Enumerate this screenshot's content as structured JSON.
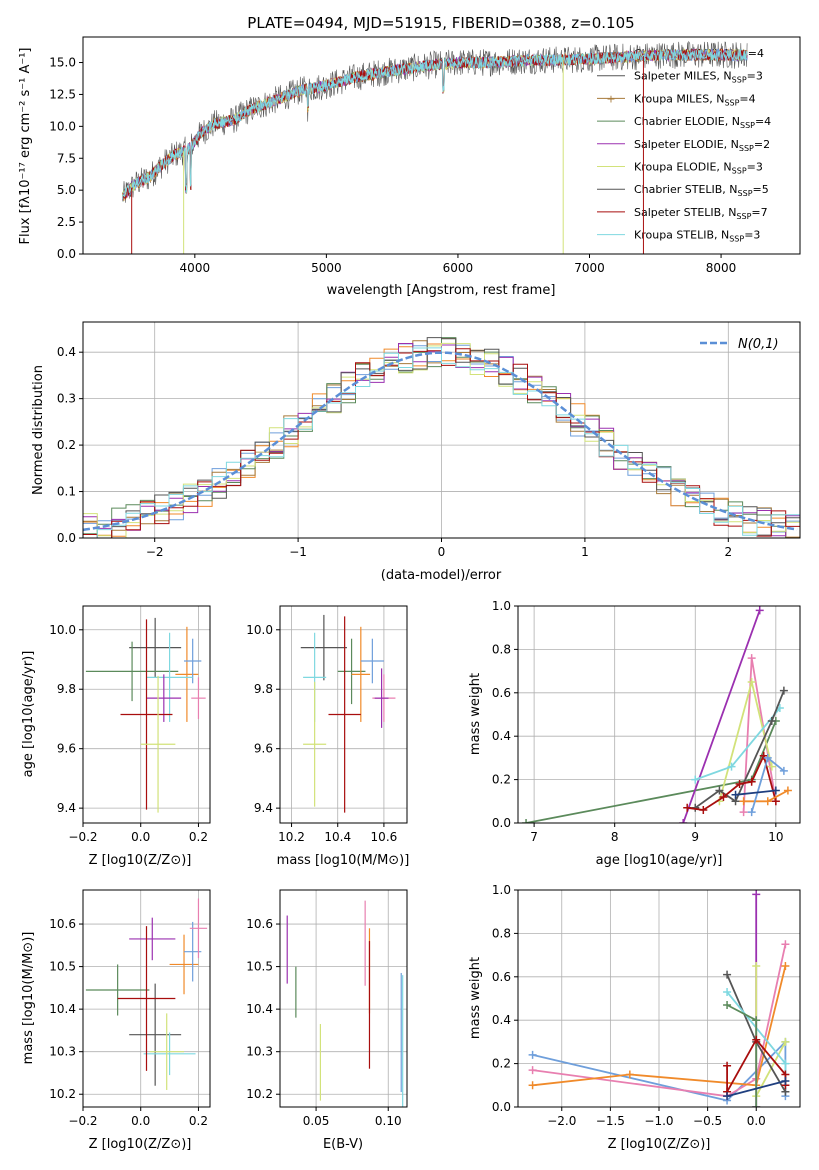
{
  "colors": [
    "#6f9fdb",
    "#f08a2a",
    "#a77a3a",
    "#5b8a5b",
    "#9b30b0",
    "#d2e27a",
    "#555555",
    "#a80e0e",
    "#7fd8e0",
    "#e87fb0",
    "#1f3f7f"
  ],
  "chart_data": [
    {
      "id": "spectrum",
      "type": "line",
      "title": "PLATE=0494, MJD=51915, FIBERID=0388, z=0.105",
      "xlabel": "wavelength [Angstrom, rest frame]",
      "ylabel": "Flux [fλ10⁻¹⁷ erg cm⁻² s⁻¹ A⁻¹]",
      "xlim": [
        3150,
        8600
      ],
      "ylim": [
        0,
        17
      ],
      "xticks": [
        4000,
        5000,
        6000,
        7000,
        8000
      ],
      "yticks": [
        0.0,
        2.5,
        5.0,
        7.5,
        10.0,
        12.5,
        15.0
      ],
      "ytick_labels": [
        "0.0",
        "2.5",
        "5.0",
        "7.5",
        "10.0",
        "12.5",
        "15.0"
      ],
      "legend": [
        "Chabrier MILES, N_SSP=4",
        "Salpeter MILES, N_SSP=3",
        "Kroupa MILES, N_SSP=4",
        "Chabrier ELODIE, N_SSP=4",
        "Salpeter ELODIE, N_SSP=2",
        "Kroupa ELODIE, N_SSP=3",
        "Chabrier STELIB, N_SSP=5",
        "Salpeter STELIB, N_SSP=7",
        "Kroupa STELIB, N_SSP=3"
      ],
      "legend_position": "top-right",
      "continuum": [
        [
          3450,
          4.5
        ],
        [
          3550,
          5.5
        ],
        [
          3650,
          6.0
        ],
        [
          3750,
          7.0
        ],
        [
          3850,
          7.8
        ],
        [
          3950,
          8.2
        ],
        [
          4050,
          9.5
        ],
        [
          4150,
          10.2
        ],
        [
          4300,
          10.5
        ],
        [
          4400,
          11.2
        ],
        [
          4600,
          12.0
        ],
        [
          4800,
          12.8
        ],
        [
          5000,
          13.2
        ],
        [
          5200,
          13.8
        ],
        [
          5400,
          14.2
        ],
        [
          5600,
          14.5
        ],
        [
          5800,
          14.8
        ],
        [
          6000,
          15.0
        ],
        [
          6200,
          15.0
        ],
        [
          6400,
          15.1
        ],
        [
          6600,
          15.2
        ],
        [
          6800,
          15.2
        ],
        [
          7000,
          15.3
        ],
        [
          7200,
          15.4
        ],
        [
          7400,
          15.5
        ],
        [
          7600,
          15.6
        ],
        [
          7800,
          15.6
        ],
        [
          8000,
          15.6
        ],
        [
          8200,
          15.6
        ]
      ]
    },
    {
      "id": "residuals",
      "type": "histogram",
      "xlabel": "(data-model)/error",
      "ylabel": "Normed distribution",
      "xlim": [
        -2.5,
        2.5
      ],
      "ylim": [
        0,
        0.465
      ],
      "xticks": [
        -2,
        -1,
        0,
        1,
        2
      ],
      "yticks": [
        0.0,
        0.1,
        0.2,
        0.3,
        0.4
      ],
      "ytick_labels": [
        "0.0",
        "0.1",
        "0.2",
        "0.3",
        "0.4"
      ],
      "legend": [
        "N(0,1)"
      ],
      "legend_position": "top-right",
      "gaussian": {
        "mean": 0,
        "sigma": 1
      }
    },
    {
      "id": "age-vs-Z",
      "type": "errorbar",
      "xlabel": "Z [log10(Z/Z⊙)]",
      "ylabel": "age [log10(age/yr)]",
      "xlim": [
        -0.2,
        0.24
      ],
      "ylim": [
        9.35,
        10.08
      ],
      "xticks": [
        -0.2,
        0.0,
        0.2
      ],
      "xtick_labels": [
        "−0.2",
        "0.0",
        "0.2"
      ],
      "yticks": [
        9.4,
        9.6,
        9.8,
        10.0
      ],
      "ytick_labels": [
        "9.4",
        "9.6",
        "9.8",
        "10.0"
      ],
      "points": [
        {
          "x": 0.05,
          "y": 9.94,
          "xerr": 0.09,
          "yerr": 0.1,
          "c": 6
        },
        {
          "x": -0.03,
          "y": 9.86,
          "xerr": 0.16,
          "yerr": 0.1,
          "c": 3
        },
        {
          "x": 0.16,
          "y": 9.85,
          "xerr": 0.04,
          "yerr": 0.16,
          "c": 1
        },
        {
          "x": 0.18,
          "y": 9.895,
          "xerr": 0.03,
          "yerr": 0.075,
          "c": 0
        },
        {
          "x": 0.1,
          "y": 9.84,
          "xerr": 0.08,
          "yerr": 0.15,
          "c": 8
        },
        {
          "x": 0.2,
          "y": 9.77,
          "xerr": 0.025,
          "yerr": 0.07,
          "c": 9
        },
        {
          "x": 0.08,
          "y": 9.77,
          "xerr": 0.06,
          "yerr": 0.08,
          "c": 4
        },
        {
          "x": 0.02,
          "y": 9.715,
          "xerr": 0.09,
          "yerr": 0.32,
          "c": 7
        },
        {
          "x": 0.06,
          "y": 9.615,
          "xerr": 0.06,
          "yerr": 0.23,
          "c": 5
        }
      ]
    },
    {
      "id": "age-vs-mass",
      "type": "errorbar",
      "xlabel": "mass [log10(M/M⊙)]",
      "ylabel": "",
      "xlim": [
        10.15,
        10.7
      ],
      "ylim": [
        9.35,
        10.08
      ],
      "xticks": [
        10.2,
        10.4,
        10.6
      ],
      "xtick_labels": [
        "10.2",
        "10.4",
        "10.6"
      ],
      "yticks": [
        9.4,
        9.6,
        9.8,
        10.0
      ],
      "ytick_labels": [
        "9.4",
        "9.6",
        "9.8",
        "10.0"
      ],
      "points": [
        {
          "x": 10.34,
          "y": 9.94,
          "xerr": 0.1,
          "yerr": 0.11,
          "c": 6
        },
        {
          "x": 10.46,
          "y": 9.86,
          "xerr": 0.06,
          "yerr": 0.11,
          "c": 3
        },
        {
          "x": 10.5,
          "y": 9.85,
          "xerr": 0.04,
          "yerr": 0.16,
          "c": 1
        },
        {
          "x": 10.55,
          "y": 9.895,
          "xerr": 0.05,
          "yerr": 0.075,
          "c": 0
        },
        {
          "x": 10.3,
          "y": 9.84,
          "xerr": 0.05,
          "yerr": 0.15,
          "c": 8
        },
        {
          "x": 10.6,
          "y": 9.77,
          "xerr": 0.05,
          "yerr": 0.08,
          "c": 9
        },
        {
          "x": 10.59,
          "y": 9.77,
          "xerr": 0.03,
          "yerr": 0.1,
          "c": 4
        },
        {
          "x": 10.43,
          "y": 9.715,
          "xerr": 0.07,
          "yerr": 0.33,
          "c": 7
        },
        {
          "x": 10.3,
          "y": 9.615,
          "xerr": 0.05,
          "yerr": 0.21,
          "c": 5
        }
      ]
    },
    {
      "id": "massweight-vs-age",
      "type": "line",
      "xlabel": "age [log10(age/yr)]",
      "ylabel": "mass weight",
      "xlim": [
        6.8,
        10.3
      ],
      "ylim": [
        0,
        1
      ],
      "xticks": [
        7,
        8,
        9,
        10
      ],
      "yticks": [
        0.0,
        0.2,
        0.4,
        0.6,
        0.8,
        1.0
      ],
      "ytick_labels": [
        "0.0",
        "0.2",
        "0.4",
        "0.6",
        "0.8",
        "1.0"
      ],
      "series": [
        {
          "c": 3,
          "x": [
            6.9,
            9.7,
            10.0
          ],
          "y": [
            0.0,
            0.2,
            0.47
          ]
        },
        {
          "c": 4,
          "x": [
            8.85,
            9.8
          ],
          "y": [
            0.0,
            0.98
          ]
        },
        {
          "c": 9,
          "x": [
            9.6,
            9.7,
            10.0
          ],
          "y": [
            0.05,
            0.76,
            0.1
          ]
        },
        {
          "c": 5,
          "x": [
            9.3,
            9.7,
            9.95
          ],
          "y": [
            0.1,
            0.65,
            0.26
          ]
        },
        {
          "c": 8,
          "x": [
            9.0,
            9.45,
            10.05
          ],
          "y": [
            0.2,
            0.26,
            0.53
          ]
        },
        {
          "c": 6,
          "x": [
            9.0,
            9.3,
            9.5,
            9.95,
            10.1
          ],
          "y": [
            0.07,
            0.15,
            0.1,
            0.47,
            0.61
          ]
        },
        {
          "c": 7,
          "x": [
            8.9,
            9.1,
            9.35,
            9.55,
            9.7,
            9.85,
            10.0
          ],
          "y": [
            0.07,
            0.06,
            0.12,
            0.18,
            0.19,
            0.31,
            0.1
          ]
        },
        {
          "c": 1,
          "x": [
            9.6,
            9.9,
            10.15
          ],
          "y": [
            0.1,
            0.1,
            0.15
          ]
        },
        {
          "c": 0,
          "x": [
            9.7,
            9.9,
            10.1
          ],
          "y": [
            0.05,
            0.3,
            0.24
          ]
        },
        {
          "c": 10,
          "x": [
            9.5,
            10.0
          ],
          "y": [
            0.13,
            0.15
          ]
        }
      ]
    },
    {
      "id": "mass-vs-Z",
      "type": "errorbar",
      "xlabel": "Z [log10(Z/Z⊙)]",
      "ylabel": "mass [log10(M/M⊙)]",
      "xlim": [
        -0.2,
        0.24
      ],
      "ylim": [
        10.17,
        10.68
      ],
      "xticks": [
        -0.2,
        0.0,
        0.2
      ],
      "xtick_labels": [
        "−0.2",
        "0.0",
        "0.2"
      ],
      "yticks": [
        10.2,
        10.3,
        10.4,
        10.5,
        10.6
      ],
      "ytick_labels": [
        "10.2",
        "10.3",
        "10.4",
        "10.5",
        "10.6"
      ],
      "points": [
        {
          "x": 0.05,
          "y": 10.34,
          "xerr": 0.09,
          "yerr": 0.12,
          "c": 6
        },
        {
          "x": -0.08,
          "y": 10.445,
          "xerr": 0.11,
          "yerr": 0.06,
          "c": 3
        },
        {
          "x": 0.15,
          "y": 10.505,
          "xerr": 0.05,
          "yerr": 0.07,
          "c": 1
        },
        {
          "x": 0.18,
          "y": 10.535,
          "xerr": 0.03,
          "yerr": 0.07,
          "c": 0
        },
        {
          "x": 0.1,
          "y": 10.295,
          "xerr": 0.09,
          "yerr": 0.05,
          "c": 8
        },
        {
          "x": 0.2,
          "y": 10.59,
          "xerr": 0.03,
          "yerr": 0.07,
          "c": 9
        },
        {
          "x": 0.04,
          "y": 10.565,
          "xerr": 0.08,
          "yerr": 0.05,
          "c": 4
        },
        {
          "x": 0.02,
          "y": 10.425,
          "xerr": 0.1,
          "yerr": 0.17,
          "c": 7
        },
        {
          "x": 0.09,
          "y": 10.3,
          "xerr": 0.06,
          "yerr": 0.09,
          "c": 5
        }
      ]
    },
    {
      "id": "mass-vs-EBV",
      "type": "errorbar",
      "xlabel": "E(B-V)",
      "ylabel": "",
      "xlim": [
        0.025,
        0.113
      ],
      "ylim": [
        10.17,
        10.68
      ],
      "xticks": [
        0.05,
        0.1
      ],
      "xtick_labels": [
        "0.05",
        "0.10"
      ],
      "yticks": [
        10.2,
        10.3,
        10.4,
        10.5,
        10.6
      ],
      "ytick_labels": [
        "10.2",
        "10.3",
        "10.4",
        "10.5",
        "10.6"
      ],
      "points": [
        {
          "x": 0.03,
          "y": 10.54,
          "xerr": 0,
          "yerr": 0.08,
          "c": 4
        },
        {
          "x": 0.036,
          "y": 10.44,
          "xerr": 0,
          "yerr": 0.06,
          "c": 3
        },
        {
          "x": 0.053,
          "y": 10.275,
          "xerr": 0,
          "yerr": 0.09,
          "c": 5
        },
        {
          "x": 0.084,
          "y": 10.555,
          "xerr": 0,
          "yerr": 0.1,
          "c": 9
        },
        {
          "x": 0.087,
          "y": 10.49,
          "xerr": 0,
          "yerr": 0.1,
          "c": 1
        },
        {
          "x": 0.087,
          "y": 10.41,
          "xerr": 0,
          "yerr": 0.15,
          "c": 7
        },
        {
          "x": 0.109,
          "y": 10.345,
          "xerr": 0,
          "yerr": 0.14,
          "c": 0
        },
        {
          "x": 0.11,
          "y": 10.31,
          "xerr": 0,
          "yerr": 0.17,
          "c": 8
        }
      ]
    },
    {
      "id": "massweight-vs-Z",
      "type": "line",
      "xlabel": "Z [log10(Z/Z⊙)]",
      "ylabel": "mass weight",
      "xlim": [
        -2.45,
        0.45
      ],
      "ylim": [
        0,
        1
      ],
      "xticks": [
        -2.0,
        -1.5,
        -1.0,
        -0.5,
        0.0
      ],
      "xtick_labels": [
        "−2.0",
        "−1.5",
        "−1.0",
        "−0.5",
        "0.0"
      ],
      "yticks": [
        0.0,
        0.2,
        0.4,
        0.6,
        0.8,
        1.0
      ],
      "ytick_labels": [
        "0.0",
        "0.2",
        "0.4",
        "0.6",
        "0.8",
        "1.0"
      ],
      "series": [
        {
          "c": 0,
          "x": [
            -2.3,
            -0.3,
            0.3,
            0.3
          ],
          "y": [
            0.24,
            0.03,
            0.3,
            0.05
          ]
        },
        {
          "c": 9,
          "x": [
            -2.3,
            -0.3,
            0.0,
            0.3
          ],
          "y": [
            0.17,
            0.05,
            0.13,
            0.75
          ]
        },
        {
          "c": 1,
          "x": [
            -2.3,
            -1.3,
            0.0,
            0.3
          ],
          "y": [
            0.1,
            0.15,
            0.1,
            0.65
          ]
        },
        {
          "c": 4,
          "x": [
            0.0,
            0.0
          ],
          "y": [
            0.0,
            0.98
          ]
        },
        {
          "c": 5,
          "x": [
            0.0,
            0.0,
            0.3
          ],
          "y": [
            0.65,
            0.05,
            0.3
          ]
        },
        {
          "c": 6,
          "x": [
            -0.3,
            0.0,
            0.3
          ],
          "y": [
            0.61,
            0.3,
            0.07
          ]
        },
        {
          "c": 8,
          "x": [
            -0.3,
            0.3,
            0.3
          ],
          "y": [
            0.53,
            0.2,
            0.1
          ]
        },
        {
          "c": 3,
          "x": [
            -0.3,
            0.0,
            0.0
          ],
          "y": [
            0.47,
            0.4,
            0.0
          ]
        },
        {
          "c": 7,
          "x": [
            -0.3,
            -0.3,
            0.0,
            0.3,
            0.3
          ],
          "y": [
            0.19,
            0.07,
            0.31,
            0.15,
            0.1
          ]
        },
        {
          "c": 10,
          "x": [
            -0.3,
            0.3
          ],
          "y": [
            0.05,
            0.12
          ]
        }
      ]
    }
  ]
}
